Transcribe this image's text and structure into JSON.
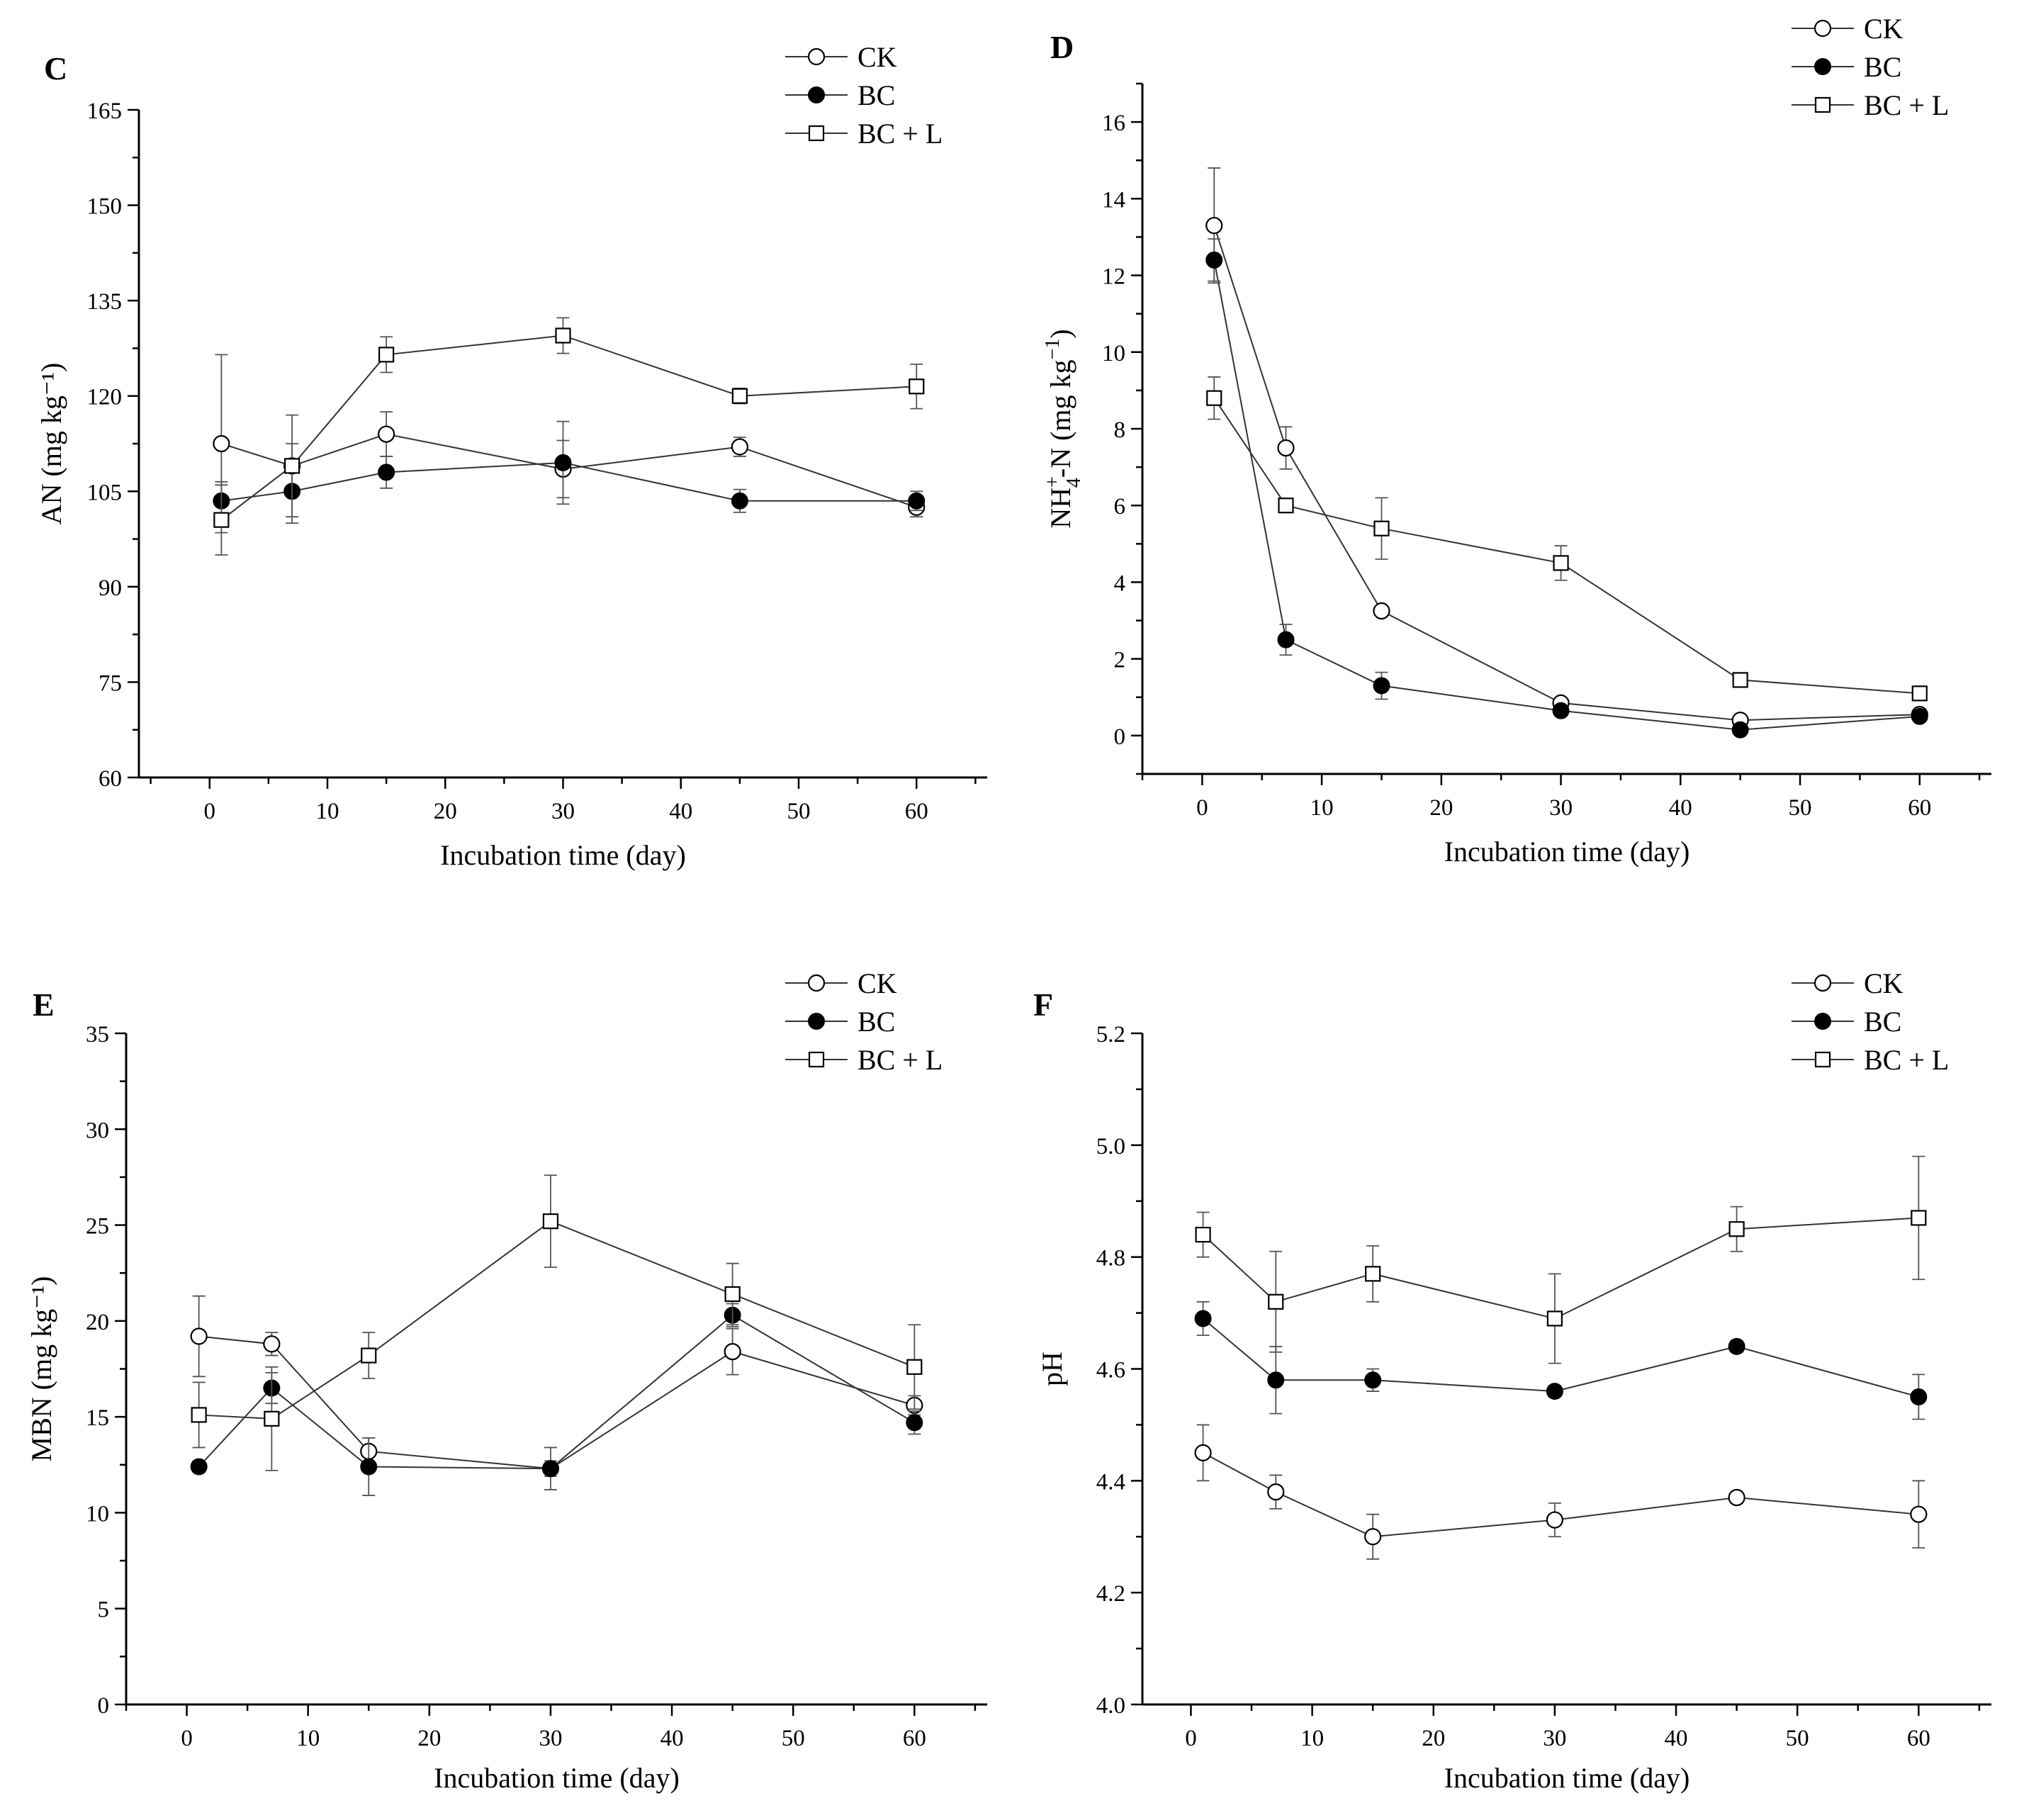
{
  "chart_data": [
    {
      "panel": "C",
      "type": "line",
      "xlabel": "Incubation time (day)",
      "ylabel": "AN (mg kg⁻¹)",
      "xlim": [
        -6,
        66
      ],
      "xticks": [
        0,
        10,
        20,
        30,
        40,
        50,
        60
      ],
      "ylim": [
        60,
        165
      ],
      "yticks": [
        60,
        75,
        90,
        105,
        120,
        135,
        150,
        165
      ],
      "ytick_labels": [
        "60",
        "75",
        "90",
        "105",
        "120",
        "135",
        "150",
        "165"
      ],
      "x": [
        1,
        7,
        15,
        30,
        45,
        60
      ],
      "series": [
        {
          "name": "CK",
          "marker": "open-circle",
          "values": [
            112.5,
            109,
            114,
            108.5,
            112,
            102.5
          ],
          "errors": [
            14,
            3.5,
            3.5,
            4.5,
            1.5,
            1.5
          ]
        },
        {
          "name": "BC",
          "marker": "filled-circle",
          "values": [
            103.5,
            105,
            108,
            109.5,
            103.5,
            103.5
          ],
          "errors": [
            3,
            5,
            2.5,
            6.5,
            1.8,
            1.5
          ]
        },
        {
          "name": "BC + L",
          "marker": "open-square",
          "values": [
            100.5,
            109,
            126.5,
            129.5,
            120,
            121.5
          ],
          "errors": [
            5.5,
            8,
            2.8,
            2.8,
            1.2,
            3.5
          ]
        }
      ]
    },
    {
      "panel": "D",
      "type": "line",
      "xlabel": "Incubation time (day)",
      "ylabel": "NH4+-N (mg kg⁻¹)",
      "ylabel_parts": {
        "pre": "NH",
        "sup": "+",
        "sub": "4",
        "post": "-N (mg kg",
        "exp": "−1",
        "close": ")"
      },
      "xlim": [
        -5,
        66
      ],
      "xticks": [
        0,
        10,
        20,
        30,
        40,
        50,
        60
      ],
      "ylim": [
        -1,
        17
      ],
      "yticks": [
        0,
        2,
        4,
        6,
        8,
        10,
        12,
        14,
        16
      ],
      "ytick_labels": [
        "0",
        "2",
        "4",
        "6",
        "8",
        "10",
        "12",
        "14",
        "16"
      ],
      "x": [
        1,
        7,
        15,
        30,
        45,
        60
      ],
      "series": [
        {
          "name": "CK",
          "marker": "open-circle",
          "values": [
            13.3,
            7.5,
            3.25,
            0.85,
            0.4,
            0.55
          ],
          "errors": [
            1.5,
            0.55,
            0.12,
            0.1,
            0.1,
            0.1
          ]
        },
        {
          "name": "BC",
          "marker": "filled-circle",
          "values": [
            12.4,
            2.5,
            1.3,
            0.65,
            0.15,
            0.5
          ],
          "errors": [
            0.55,
            0.4,
            0.35,
            0.1,
            0.1,
            0.1
          ]
        },
        {
          "name": "BC + L",
          "marker": "open-square",
          "values": [
            8.8,
            6.0,
            5.4,
            4.5,
            1.45,
            1.1
          ],
          "errors": [
            0.55,
            0.15,
            0.8,
            0.45,
            0.1,
            0.1
          ]
        }
      ]
    },
    {
      "panel": "E",
      "type": "line",
      "xlabel": "Incubation time (day)",
      "ylabel": "MBN (mg kg⁻¹)",
      "xlim": [
        -5,
        66
      ],
      "xticks": [
        0,
        10,
        20,
        30,
        40,
        50,
        60
      ],
      "ylim": [
        0,
        35
      ],
      "yticks": [
        0,
        5,
        10,
        15,
        20,
        25,
        30,
        35
      ],
      "ytick_labels": [
        "0",
        "5",
        "10",
        "15",
        "20",
        "25",
        "30",
        "35"
      ],
      "x": [
        1,
        7,
        15,
        30,
        45,
        60
      ],
      "series": [
        {
          "name": "CK",
          "marker": "open-circle",
          "values": [
            19.2,
            18.8,
            13.2,
            12.3,
            18.4,
            15.6
          ],
          "errors": [
            2.1,
            0.6,
            0.7,
            0.4,
            1.2,
            0.5
          ]
        },
        {
          "name": "BC",
          "marker": "filled-circle",
          "values": [
            12.4,
            16.5,
            12.4,
            12.3,
            20.3,
            14.7
          ],
          "errors": [
            0.3,
            0.8,
            1.5,
            1.1,
            0.6,
            0.6
          ]
        },
        {
          "name": "BC + L",
          "marker": "open-square",
          "values": [
            15.1,
            14.9,
            18.2,
            25.2,
            21.4,
            17.6
          ],
          "errors": [
            1.7,
            2.7,
            1.2,
            2.4,
            1.6,
            2.2
          ]
        }
      ]
    },
    {
      "panel": "F",
      "type": "line",
      "xlabel": "Incubation time (day)",
      "ylabel": "pH",
      "xlim": [
        -4,
        66
      ],
      "xticks": [
        0,
        10,
        20,
        30,
        40,
        50,
        60
      ],
      "ylim": [
        4.0,
        5.2
      ],
      "yticks": [
        4.0,
        4.2,
        4.4,
        4.6,
        4.8,
        5.0,
        5.2
      ],
      "ytick_labels": [
        "4.0",
        "4.2",
        "4.4",
        "4.6",
        "4.8",
        "5.0",
        "5.2"
      ],
      "x": [
        1,
        7,
        15,
        30,
        45,
        60
      ],
      "series": [
        {
          "name": "CK",
          "marker": "open-circle",
          "values": [
            4.45,
            4.38,
            4.3,
            4.33,
            4.37,
            4.34
          ],
          "errors": [
            0.05,
            0.03,
            0.04,
            0.03,
            0.01,
            0.06
          ]
        },
        {
          "name": "BC",
          "marker": "filled-circle",
          "values": [
            4.69,
            4.58,
            4.58,
            4.56,
            4.64,
            4.55
          ],
          "errors": [
            0.03,
            0.06,
            0.02,
            0.01,
            0.01,
            0.04
          ]
        },
        {
          "name": "BC + L",
          "marker": "open-square",
          "values": [
            4.84,
            4.72,
            4.77,
            4.69,
            4.85,
            4.87
          ],
          "errors": [
            0.04,
            0.09,
            0.05,
            0.08,
            0.04,
            0.11
          ]
        }
      ]
    }
  ]
}
